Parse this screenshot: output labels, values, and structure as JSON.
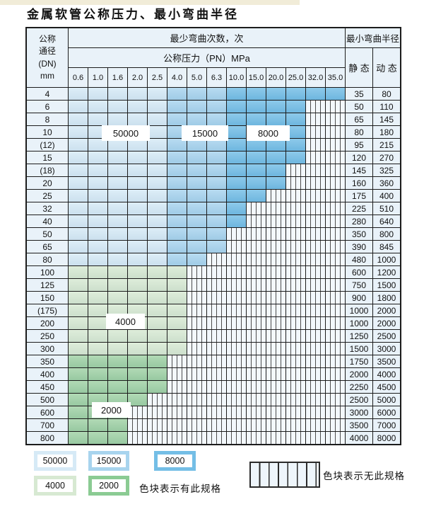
{
  "title": "金属软管公称压力、最小弯曲半径",
  "table": {
    "dn_header_lines": [
      "公称",
      "通径",
      "(DN)",
      "mm"
    ],
    "bend_cycles_header": "最少弯曲次数，次",
    "pressure_header": "公称压力（PN）MPa",
    "radius_header": "最小弯曲半径",
    "static_label": "静 态",
    "dynamic_label": "动 态",
    "pressures": [
      "0.6",
      "1.0",
      "1.6",
      "2.0",
      "2.5",
      "4.0",
      "5.0",
      "6.3",
      "10.0",
      "15.0",
      "20.0",
      "25.0",
      "32.0",
      "35.0"
    ],
    "rows": [
      {
        "dn": "4",
        "static": "35",
        "dynamic": "80",
        "colored_cols": 14,
        "zone_group": "b"
      },
      {
        "dn": "6",
        "static": "50",
        "dynamic": "110",
        "colored_cols": 12,
        "zone_group": "b"
      },
      {
        "dn": "8",
        "static": "65",
        "dynamic": "145",
        "colored_cols": 12,
        "zone_group": "b"
      },
      {
        "dn": "10",
        "static": "80",
        "dynamic": "180",
        "colored_cols": 12,
        "zone_group": "b"
      },
      {
        "dn": "(12)",
        "static": "95",
        "dynamic": "215",
        "colored_cols": 12,
        "zone_group": "b"
      },
      {
        "dn": "15",
        "static": "120",
        "dynamic": "270",
        "colored_cols": 12,
        "zone_group": "b"
      },
      {
        "dn": "(18)",
        "static": "145",
        "dynamic": "325",
        "colored_cols": 11,
        "zone_group": "b"
      },
      {
        "dn": "20",
        "static": "160",
        "dynamic": "360",
        "colored_cols": 11,
        "zone_group": "b"
      },
      {
        "dn": "25",
        "static": "175",
        "dynamic": "400",
        "colored_cols": 10,
        "zone_group": "b"
      },
      {
        "dn": "32",
        "static": "225",
        "dynamic": "510",
        "colored_cols": 9,
        "zone_group": "b"
      },
      {
        "dn": "40",
        "static": "280",
        "dynamic": "640",
        "colored_cols": 9,
        "zone_group": "b"
      },
      {
        "dn": "50",
        "static": "350",
        "dynamic": "800",
        "colored_cols": 8,
        "zone_group": "b"
      },
      {
        "dn": "65",
        "static": "390",
        "dynamic": "845",
        "colored_cols": 8,
        "zone_group": "b"
      },
      {
        "dn": "80",
        "static": "480",
        "dynamic": "1000",
        "colored_cols": 7,
        "zone_group": "b"
      },
      {
        "dn": "100",
        "static": "600",
        "dynamic": "1200",
        "colored_cols": 6,
        "zone_group": "g1"
      },
      {
        "dn": "125",
        "static": "750",
        "dynamic": "1500",
        "colored_cols": 6,
        "zone_group": "g1"
      },
      {
        "dn": "150",
        "static": "900",
        "dynamic": "1800",
        "colored_cols": 6,
        "zone_group": "g1"
      },
      {
        "dn": "(175)",
        "static": "1000",
        "dynamic": "2000",
        "colored_cols": 6,
        "zone_group": "g1"
      },
      {
        "dn": "200",
        "static": "1000",
        "dynamic": "2000",
        "colored_cols": 6,
        "zone_group": "g1"
      },
      {
        "dn": "250",
        "static": "1250",
        "dynamic": "2500",
        "colored_cols": 6,
        "zone_group": "g1"
      },
      {
        "dn": "300",
        "static": "1500",
        "dynamic": "3000",
        "colored_cols": 6,
        "zone_group": "g1"
      },
      {
        "dn": "350",
        "static": "1750",
        "dynamic": "3500",
        "colored_cols": 5,
        "zone_group": "g2"
      },
      {
        "dn": "400",
        "static": "2000",
        "dynamic": "4000",
        "colored_cols": 5,
        "zone_group": "g2"
      },
      {
        "dn": "450",
        "static": "2250",
        "dynamic": "4500",
        "colored_cols": 5,
        "zone_group": "g2"
      },
      {
        "dn": "500",
        "static": "2500",
        "dynamic": "5000",
        "colored_cols": 4,
        "zone_group": "g2"
      },
      {
        "dn": "600",
        "static": "3000",
        "dynamic": "6000",
        "colored_cols": 3,
        "zone_group": "g2"
      },
      {
        "dn": "700",
        "static": "3500",
        "dynamic": "7000",
        "colored_cols": 3,
        "zone_group": "g2"
      },
      {
        "dn": "800",
        "static": "4000",
        "dynamic": "8000",
        "colored_cols": 3,
        "zone_group": "g2"
      }
    ]
  },
  "cycles": {
    "c50000": "50000",
    "c15000": "15000",
    "c8000": "8000",
    "c4000": "4000",
    "c2000": "2000"
  },
  "legend": {
    "has_spec_note": "色块表示有此规格",
    "no_spec_note": "色块表示无此规格"
  },
  "colors": {
    "zone_50000": "#d6eaf6",
    "zone_15000": "#a8d4ee",
    "zone_8000": "#74bee6",
    "zone_4000": "#d7e9d2",
    "zone_2000": "#a0d1a5",
    "legend_2000": "#8bcb93",
    "header_bg": "#e9f2f9",
    "grid_line": "#1c1c1c"
  }
}
